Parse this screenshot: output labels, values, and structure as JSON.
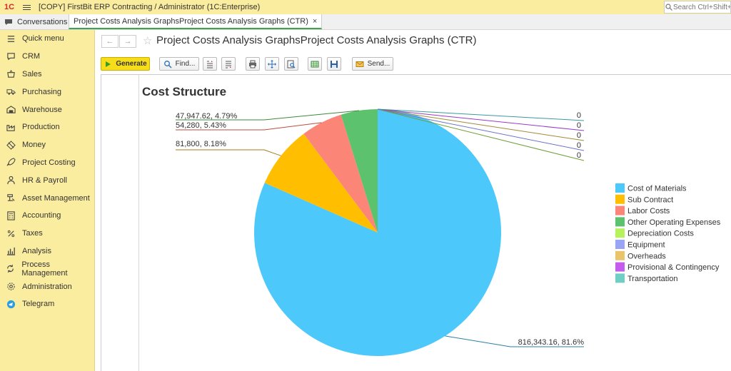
{
  "titlebar": {
    "logo": "1С",
    "title": "[COPY] FirstBit ERP Contracting / Administrator  (1C:Enterprise)",
    "search_placeholder": "Search Ctrl+Shift+F"
  },
  "tabs": {
    "conversations": "Conversations",
    "document_tab": "Project Costs Analysis GraphsProject Costs Analysis Graphs (CTR)",
    "close_glyph": "×"
  },
  "sidebar": {
    "items": [
      {
        "label": "Quick menu",
        "icon": "menu-icon"
      },
      {
        "label": "CRM",
        "icon": "chat-icon"
      },
      {
        "label": "Sales",
        "icon": "basket-icon"
      },
      {
        "label": "Purchasing",
        "icon": "truck-icon"
      },
      {
        "label": "Warehouse",
        "icon": "warehouse-icon"
      },
      {
        "label": "Production",
        "icon": "factory-icon"
      },
      {
        "label": "Money",
        "icon": "money-icon"
      },
      {
        "label": "Project Costing",
        "icon": "rocket-icon"
      },
      {
        "label": "HR & Payroll",
        "icon": "person-icon"
      },
      {
        "label": "Asset Management",
        "icon": "asset-icon"
      },
      {
        "label": "Accounting",
        "icon": "calculator-icon"
      },
      {
        "label": "Taxes",
        "icon": "percent-icon"
      },
      {
        "label": "Analysis",
        "icon": "chart-icon"
      },
      {
        "label": "Process Management",
        "icon": "cycle-icon"
      },
      {
        "label": "Administration",
        "icon": "gear-icon"
      },
      {
        "label": "Telegram",
        "icon": "telegram-icon"
      }
    ]
  },
  "page": {
    "title": "Project Costs Analysis GraphsProject Costs Analysis Graphs (CTR)",
    "back_glyph": "←",
    "forward_glyph": "→",
    "star_glyph": "☆"
  },
  "toolbar": {
    "generate_label": "Generate",
    "find_label": "Find...",
    "send_label": "Send..."
  },
  "colors": {
    "sidebar_bg": "#fbeda0",
    "primary_button": "#f7dc1a",
    "active_tab_underline": "#3fa34d"
  },
  "chart_data": {
    "type": "pie",
    "title": "Cost Structure",
    "legend_position": "right",
    "slices": [
      {
        "name": "Cost of Materials",
        "value": 816343.16,
        "label": "816,343.16, 81.6%",
        "color": "#4dc8fb"
      },
      {
        "name": "Sub Contract",
        "value": 81800,
        "label": "81,800, 8.18%",
        "color": "#ffbf00"
      },
      {
        "name": "Labor Costs",
        "value": 54280,
        "label": "54,280, 5.43%",
        "color": "#fb8678"
      },
      {
        "name": "Other Operating Expenses",
        "value": 47947.62,
        "label": "47,947.62, 4.79%",
        "color": "#5cc26e"
      },
      {
        "name": "Depreciation Costs",
        "value": 0,
        "label": "0",
        "color": "#b6f25c"
      },
      {
        "name": "Equipment",
        "value": 0,
        "label": "0",
        "color": "#9aa4f5"
      },
      {
        "name": "Overheads",
        "value": 0,
        "label": "0",
        "color": "#e9c46a"
      },
      {
        "name": "Provisional & Contingency",
        "value": 0,
        "label": "0",
        "color": "#c45cf0"
      },
      {
        "name": "Transportation",
        "value": 0,
        "label": "0",
        "color": "#6fcfc4"
      }
    ]
  }
}
